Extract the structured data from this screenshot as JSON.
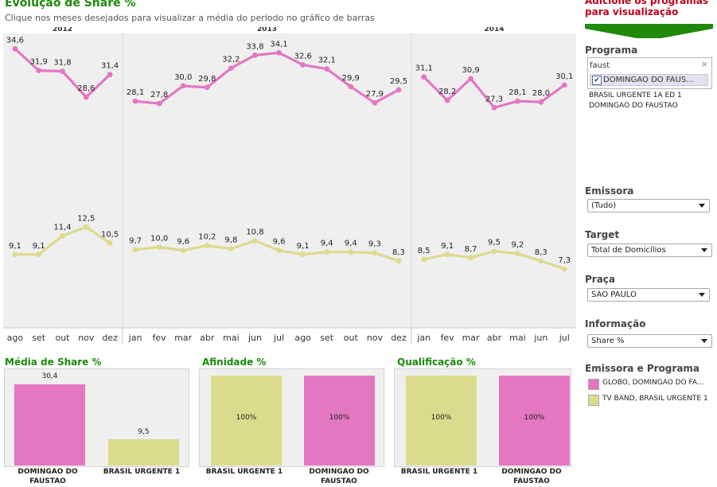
{
  "header": {
    "title": "Evolução de Share %",
    "subtitle": "Clique nos meses desejados para visualizar a média do período no gráfico de barras"
  },
  "colors": {
    "pink": "#e377c2",
    "yellow": "#dbdb8d",
    "green_title": "#1a8a0a",
    "red_title": "#c0001a",
    "arrow_green": "#1f8a0a"
  },
  "chart_data": [
    {
      "type": "line",
      "title": "Evolução de Share %",
      "year_groups": [
        {
          "label": "2012",
          "months": [
            "ago",
            "set",
            "out",
            "nov",
            "dez"
          ]
        },
        {
          "label": "2013",
          "months": [
            "jan",
            "fev",
            "mar",
            "abr",
            "mai",
            "jun",
            "jul",
            "ago",
            "set",
            "out",
            "nov",
            "dez"
          ]
        },
        {
          "label": "2014",
          "months": [
            "jan",
            "fev",
            "mar",
            "abr",
            "mai",
            "jun",
            "jul"
          ]
        }
      ],
      "series": [
        {
          "color": "#e377c2",
          "segments": [
            [
              34.6,
              31.9,
              31.8,
              28.6,
              31.4
            ],
            [
              28.1,
              27.8,
              30.0,
              29.8,
              32.2,
              33.8,
              34.1,
              32.6,
              32.1,
              29.9,
              27.9,
              29.5
            ],
            [
              31.1,
              28.2,
              30.9,
              27.3,
              28.1,
              28.0,
              30.1
            ]
          ],
          "labels": [
            [
              "34,6",
              "31,9",
              "31,8",
              "28,6",
              "31,4"
            ],
            [
              "28,1",
              "27,8",
              "30,0",
              "29,8",
              "32,2",
              "33,8",
              "34,1",
              "32,6",
              "32,1",
              "29,9",
              "27,9",
              "29,5"
            ],
            [
              "31,1",
              "28,2",
              "30,9",
              "27,3",
              "28,1",
              "28,0",
              "30,1"
            ]
          ]
        },
        {
          "color": "#dbdb8d",
          "segments": [
            [
              9.1,
              9.1,
              11.4,
              12.5,
              10.5
            ],
            [
              9.7,
              10.0,
              9.6,
              10.2,
              9.8,
              10.8,
              9.6,
              9.1,
              9.4,
              9.4,
              9.3,
              8.3
            ],
            [
              8.5,
              9.1,
              8.7,
              9.5,
              9.2,
              8.3,
              7.3
            ]
          ],
          "labels": [
            [
              "9,1",
              "9,1",
              "11,4",
              "12,5",
              "10,5"
            ],
            [
              "9,7",
              "10,0",
              "9,6",
              "10,2",
              "9,8",
              "10,8",
              "9,6",
              "9,1",
              "9,4",
              "9,4",
              "9,3",
              "8,3"
            ],
            [
              "8,5",
              "9,1",
              "8,7",
              "9,5",
              "9,2",
              "8,3",
              "7,3"
            ]
          ]
        }
      ]
    },
    {
      "type": "bar",
      "title": "Média de Share %",
      "categories": [
        "DOMINGAO DO FAUSTAO",
        "BRASIL URGENTE 1"
      ],
      "values": [
        30.4,
        9.5
      ],
      "labels": [
        "30,4",
        "9,5"
      ],
      "colors": [
        "#e377c2",
        "#dbdb8d"
      ],
      "ylim": [
        0,
        34
      ]
    },
    {
      "type": "bar",
      "title": "Afinidade %",
      "categories": [
        "BRASIL URGENTE 1",
        "DOMINGAO DO FAUSTAO"
      ],
      "values": [
        100,
        100
      ],
      "labels": [
        "100%",
        "100%"
      ],
      "colors": [
        "#dbdb8d",
        "#e377c2"
      ],
      "ylim": [
        0,
        110
      ]
    },
    {
      "type": "bar",
      "title": "Qualificação %",
      "categories": [
        "BRASIL URGENTE 1",
        "DOMINGAO DO FAUSTAO"
      ],
      "values": [
        100,
        100
      ],
      "labels": [
        "100%",
        "100%"
      ],
      "colors": [
        "#dbdb8d",
        "#e377c2"
      ],
      "ylim": [
        0,
        110
      ]
    }
  ],
  "bars": {
    "media": {
      "title": "Média de Share %",
      "v0": "30,4",
      "v1": "9,5",
      "c0": "DOMINGAO DO FAUSTAO",
      "c1": "BRASIL URGENTE 1"
    },
    "afinidade": {
      "title": "Afinidade %",
      "v0": "100%",
      "v1": "100%",
      "c0": "BRASIL URGENTE 1",
      "c1": "DOMINGAO DO FAUSTAO"
    },
    "qualificacao": {
      "title": "Qualificação %",
      "v0": "100%",
      "v1": "100%",
      "c0": "BRASIL URGENTE 1",
      "c1": "DOMINGAO DO FAUSTAO"
    }
  },
  "sidebar": {
    "add_title": "Adicione os programas para visualização",
    "programa": {
      "label": "Programa",
      "search_value": "faust",
      "checked_item": "DOMINGAO DO FAUS...",
      "selected": [
        "BRASIL URGENTE 1A ED 1",
        "DOMINGAO DO FAUSTAO"
      ]
    },
    "emissora": {
      "label": "Emissora",
      "value": "(Tudo)"
    },
    "target": {
      "label": "Target",
      "value": "Total de Domicílios"
    },
    "praca": {
      "label": "Praça",
      "value": "SAO PAULO"
    },
    "informacao": {
      "label": "Informação",
      "value": "Share %"
    },
    "legend": {
      "label": "Emissora e Programa",
      "items": [
        {
          "text": "GLOBO, DOMINGAO DO FA...",
          "color": "#e377c2"
        },
        {
          "text": "TV BAND, BRASIL URGENTE 1",
          "color": "#dbdb8d"
        }
      ]
    }
  }
}
